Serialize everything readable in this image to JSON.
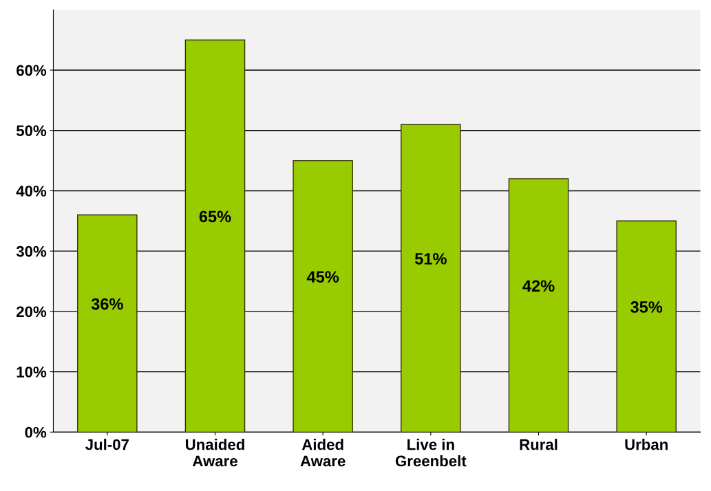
{
  "chart_data": {
    "type": "bar",
    "categories": [
      "Jul-07",
      "Unaided\nAware",
      "Aided\nAware",
      "Live in\nGreenbelt",
      "Rural",
      "Urban"
    ],
    "values": [
      36,
      65,
      45,
      51,
      42,
      35
    ],
    "value_labels": [
      "36%",
      "65%",
      "45%",
      "51%",
      "42%",
      "35%"
    ],
    "color": "#99cc00",
    "ylim": [
      0,
      70
    ],
    "yticks": [
      {
        "value": 0,
        "label": "0%"
      },
      {
        "value": 10,
        "label": "10%"
      },
      {
        "value": 20,
        "label": "20%"
      },
      {
        "value": 30,
        "label": "30%"
      },
      {
        "value": 40,
        "label": "40%"
      },
      {
        "value": 50,
        "label": "50%"
      },
      {
        "value": 60,
        "label": "60%"
      }
    ],
    "grid": "y",
    "legend": false
  }
}
